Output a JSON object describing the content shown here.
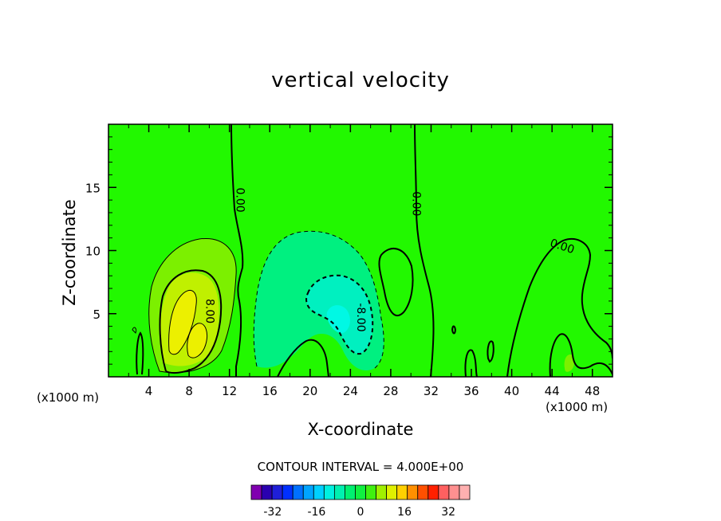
{
  "chart_data": {
    "type": "heatmap",
    "title": "vertical velocity",
    "xlabel": "X-coordinate",
    "ylabel": "Z-coordinate",
    "x_unit_left": "(x1000 m)",
    "x_unit_right": "(x1000 m)",
    "xlim": [
      0,
      50
    ],
    "ylim": [
      0,
      20
    ],
    "x_ticks": [
      "4",
      "8",
      "12",
      "16",
      "20",
      "24",
      "28",
      "32",
      "36",
      "40",
      "44",
      "48"
    ],
    "x_tick_values": [
      4,
      8,
      12,
      16,
      20,
      24,
      28,
      32,
      36,
      40,
      44,
      48
    ],
    "y_ticks": [
      "5",
      "10",
      "15"
    ],
    "y_tick_values": [
      5,
      10,
      15
    ],
    "contour_interval_text": "CONTOUR INTERVAL = 4.000E+00",
    "contour_labels": [
      {
        "text": "0.00",
        "x": 13.0,
        "y": 14.0,
        "rotation": 90
      },
      {
        "text": "0.00",
        "x": 30.5,
        "y": 13.7,
        "rotation": 90
      },
      {
        "text": "0.00",
        "x": 45.0,
        "y": 10.3,
        "rotation": 18
      },
      {
        "text": "8.00",
        "x": 10.0,
        "y": 5.2,
        "rotation": 90
      },
      {
        "text": "-8.00",
        "x": 25.0,
        "y": 4.7,
        "rotation": 90
      }
    ],
    "fields": [
      {
        "name": "w",
        "series": [
          {
            "x": 4.0,
            "y": 3.5,
            "value": 4
          },
          {
            "x": 8.0,
            "y": 4.5,
            "value": 12
          },
          {
            "x": 21.5,
            "y": 6.0,
            "value": -4
          },
          {
            "x": 23.0,
            "y": 4.5,
            "value": -12
          }
        ]
      }
    ],
    "colorbar": {
      "levels": [
        -36,
        -32,
        -28,
        -24,
        -20,
        -16,
        -12,
        -8,
        -4,
        0,
        4,
        8,
        12,
        16,
        20,
        24,
        28,
        32,
        36
      ],
      "colors": [
        "#8000b0",
        "#2a00b0",
        "#1f1fd8",
        "#0030ff",
        "#0070ff",
        "#00a4ff",
        "#00d0ff",
        "#00f0e0",
        "#00f0b0",
        "#00f070",
        "#10f040",
        "#40f010",
        "#a0f000",
        "#e0f000",
        "#ffd000",
        "#ff9000",
        "#ff5000",
        "#ff2000",
        "#ff6060",
        "#ff9090",
        "#ffb0b0"
      ],
      "tick_labels": [
        "-32",
        "-16",
        "0",
        "16",
        "32"
      ],
      "tick_values": [
        -32,
        -16,
        0,
        16,
        32
      ]
    },
    "colors": {
      "background_field": "#22f800",
      "positive_4": "#7cf000",
      "positive_8": "#c0f000",
      "positive_12": "#ecf000",
      "negative_4": "#00f080",
      "negative_8": "#00f0c0",
      "negative_12": "#00f8e4"
    }
  }
}
